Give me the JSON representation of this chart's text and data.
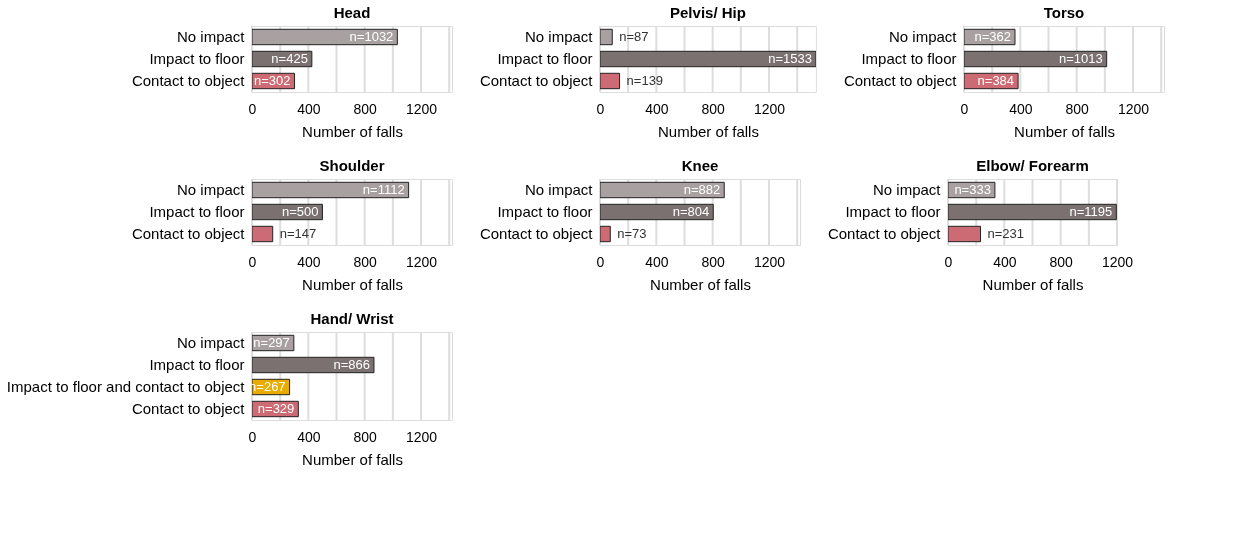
{
  "chart_data": [
    {
      "type": "bar",
      "orientation": "horizontal",
      "title": "Head",
      "xlabel": "Number of falls",
      "categories": [
        "No impact",
        "Impact to floor",
        "Contact to object"
      ],
      "values": [
        1032,
        425,
        302
      ],
      "colors": [
        "#a9a1a1",
        "#7b7171",
        "#cc6b73"
      ],
      "value_labels": [
        "n=1032",
        "n=425",
        "n=302"
      ],
      "xlim": [
        0,
        1420
      ],
      "xticks": [
        0,
        {
          "value": 200,
          "label": null
        },
        400,
        {
          "value": 600,
          "label": null
        },
        800,
        {
          "value": 1000,
          "label": null
        },
        1200,
        {
          "value": 1400,
          "label": null
        }
      ],
      "grid": "x"
    },
    {
      "type": "bar",
      "orientation": "horizontal",
      "title": "Pelvis/ Hip",
      "xlabel": "Number of falls",
      "categories": [
        "No impact",
        "Impact to floor",
        "Contact to object"
      ],
      "values": [
        87,
        1533,
        139
      ],
      "colors": [
        "#a9a1a1",
        "#7b7171",
        "#cc6b73"
      ],
      "value_labels": [
        "n=87",
        "n=1533",
        "n=139"
      ],
      "xlim": [
        0,
        1533
      ],
      "xticks": [
        0,
        {
          "value": 200,
          "label": null
        },
        400,
        {
          "value": 600,
          "label": null
        },
        800,
        {
          "value": 1000,
          "label": null
        },
        1200,
        {
          "value": 1400,
          "label": null
        }
      ],
      "grid": "x"
    },
    {
      "type": "bar",
      "orientation": "horizontal",
      "title": "Torso",
      "xlabel": "Number of falls",
      "categories": [
        "No impact",
        "Impact to floor",
        "Contact to object"
      ],
      "values": [
        362,
        1013,
        384
      ],
      "colors": [
        "#a9a1a1",
        "#7b7171",
        "#cc6b73"
      ],
      "value_labels": [
        "n=362",
        "n=1013",
        "n=384"
      ],
      "xlim": [
        0,
        1420
      ],
      "xticks": [
        0,
        {
          "value": 200,
          "label": null
        },
        400,
        {
          "value": 600,
          "label": null
        },
        800,
        {
          "value": 1000,
          "label": null
        },
        1200,
        {
          "value": 1400,
          "label": null
        }
      ],
      "grid": "x"
    },
    {
      "type": "bar",
      "orientation": "horizontal",
      "title": "Shoulder",
      "xlabel": "Number of falls",
      "categories": [
        "No impact",
        "Impact to floor",
        "Contact to object"
      ],
      "values": [
        1112,
        500,
        147
      ],
      "colors": [
        "#a9a1a1",
        "#7b7171",
        "#cc6b73"
      ],
      "value_labels": [
        "n=1112",
        "n=500",
        "n=147"
      ],
      "xlim": [
        0,
        1420
      ],
      "xticks": [
        0,
        {
          "value": 200,
          "label": null
        },
        400,
        {
          "value": 600,
          "label": null
        },
        800,
        {
          "value": 1000,
          "label": null
        },
        1200,
        {
          "value": 1400,
          "label": null
        }
      ],
      "grid": "x"
    },
    {
      "type": "bar",
      "orientation": "horizontal",
      "title": "Knee",
      "xlabel": "Number of falls",
      "categories": [
        "No impact",
        "Impact to floor",
        "Contact to object"
      ],
      "values": [
        882,
        804,
        73
      ],
      "colors": [
        "#a9a1a1",
        "#7b7171",
        "#cc6b73"
      ],
      "value_labels": [
        "n=882",
        "n=804",
        "n=73"
      ],
      "xlim": [
        0,
        1420
      ],
      "xticks": [
        0,
        {
          "value": 200,
          "label": null
        },
        400,
        {
          "value": 600,
          "label": null
        },
        800,
        {
          "value": 1000,
          "label": null
        },
        1200,
        {
          "value": 1400,
          "label": null
        }
      ],
      "grid": "x"
    },
    {
      "type": "bar",
      "orientation": "horizontal",
      "title": "Elbow/ Forearm",
      "xlabel": "Number of falls",
      "categories": [
        "No impact",
        "Impact to floor",
        "Contact to object"
      ],
      "values": [
        333,
        1195,
        231
      ],
      "colors": [
        "#a9a1a1",
        "#7b7171",
        "#cc6b73"
      ],
      "value_labels": [
        "n=333",
        "n=1195",
        "n=231"
      ],
      "xlim": [
        0,
        1200
      ],
      "xticks": [
        0,
        {
          "value": 200,
          "label": null
        },
        400,
        {
          "value": 600,
          "label": null
        },
        800,
        {
          "value": 1000,
          "label": null
        },
        1200
      ],
      "grid": "x"
    },
    {
      "type": "bar",
      "orientation": "horizontal",
      "title": "Hand/ Wrist",
      "xlabel": "Number of falls",
      "categories": [
        "No impact",
        "Impact to floor",
        "Impact to floor and contact to object",
        "Contact to object"
      ],
      "values": [
        297,
        866,
        267,
        329
      ],
      "colors": [
        "#a9a1a1",
        "#7b7171",
        "#e8ab00",
        "#cc6b73"
      ],
      "value_labels": [
        "n=297",
        "n=866",
        "n=267",
        "n=329"
      ],
      "xlim": [
        0,
        1420
      ],
      "xticks": [
        0,
        {
          "value": 200,
          "label": null
        },
        400,
        {
          "value": 600,
          "label": null
        },
        800,
        {
          "value": 1000,
          "label": null
        },
        1200,
        {
          "value": 1400,
          "label": null
        }
      ],
      "grid": "x"
    }
  ]
}
